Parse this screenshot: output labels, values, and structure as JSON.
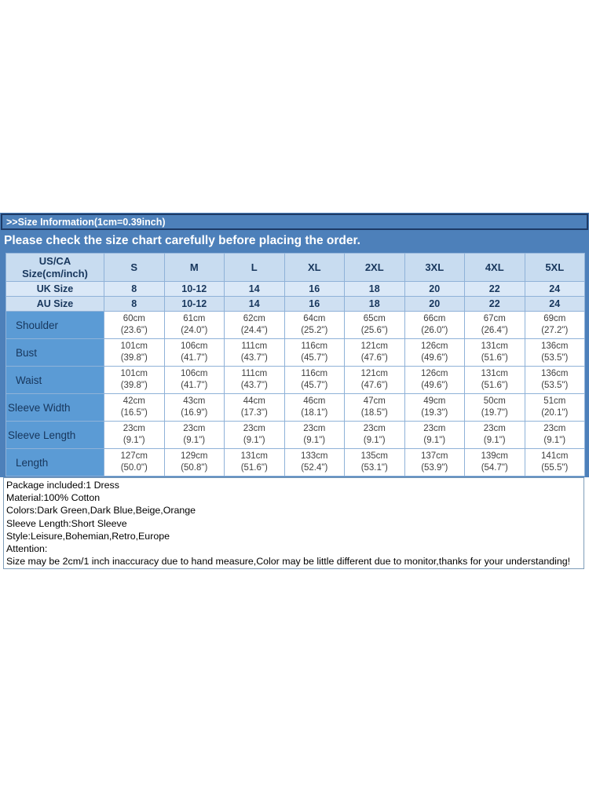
{
  "header": {
    "size_info": ">>Size Information(1cm=0.39inch)",
    "note": "Please check the size chart carefully before placing the order."
  },
  "table": {
    "corner": [
      "US/CA",
      "Size(cm/inch)"
    ],
    "size_columns": [
      "S",
      "M",
      "L",
      "XL",
      "2XL",
      "3XL",
      "4XL",
      "5XL"
    ],
    "conversion_rows": [
      {
        "label": "UK Size",
        "values": [
          "8",
          "10-12",
          "14",
          "16",
          "18",
          "20",
          "22",
          "24"
        ]
      },
      {
        "label": "AU Size",
        "values": [
          "8",
          "10-12",
          "14",
          "16",
          "18",
          "20",
          "22",
          "24"
        ]
      }
    ],
    "measurement_rows": [
      {
        "label": "Shoulder",
        "cm": [
          "60cm",
          "61cm",
          "62cm",
          "64cm",
          "65cm",
          "66cm",
          "67cm",
          "69cm"
        ],
        "inch": [
          "(23.6\")",
          "(24.0\")",
          "(24.4\")",
          "(25.2\")",
          "(25.6\")",
          "(26.0\")",
          "(26.4\")",
          "(27.2\")"
        ]
      },
      {
        "label": "Bust",
        "cm": [
          "101cm",
          "106cm",
          "111cm",
          "116cm",
          "121cm",
          "126cm",
          "131cm",
          "136cm"
        ],
        "inch": [
          "(39.8\")",
          "(41.7\")",
          "(43.7\")",
          "(45.7\")",
          "(47.6\")",
          "(49.6\")",
          "(51.6\")",
          "(53.5\")"
        ]
      },
      {
        "label": "Waist",
        "cm": [
          "101cm",
          "106cm",
          "111cm",
          "116cm",
          "121cm",
          "126cm",
          "131cm",
          "136cm"
        ],
        "inch": [
          "(39.8\")",
          "(41.7\")",
          "(43.7\")",
          "(45.7\")",
          "(47.6\")",
          "(49.6\")",
          "(51.6\")",
          "(53.5\")"
        ]
      },
      {
        "label": "Sleeve Width",
        "cm": [
          "42cm",
          "43cm",
          "44cm",
          "46cm",
          "47cm",
          "49cm",
          "50cm",
          "51cm"
        ],
        "inch": [
          "(16.5\")",
          "(16.9\")",
          "(17.3\")",
          "(18.1\")",
          "(18.5\")",
          "(19.3\")",
          "(19.7\")",
          "(20.1\")"
        ]
      },
      {
        "label": "Sleeve Length",
        "cm": [
          "23cm",
          "23cm",
          "23cm",
          "23cm",
          "23cm",
          "23cm",
          "23cm",
          "23cm"
        ],
        "inch": [
          "(9.1\")",
          "(9.1\")",
          "(9.1\")",
          "(9.1\")",
          "(9.1\")",
          "(9.1\")",
          "(9.1\")",
          "(9.1\")"
        ]
      },
      {
        "label": "Length",
        "cm": [
          "127cm",
          "129cm",
          "131cm",
          "133cm",
          "135cm",
          "137cm",
          "139cm",
          "141cm"
        ],
        "inch": [
          "(50.0\")",
          "(50.8\")",
          "(51.6\")",
          "(52.4\")",
          "(53.1\")",
          "(53.9\")",
          "(54.7\")",
          "(55.5\")"
        ]
      }
    ]
  },
  "details": {
    "lines": [
      "Package included:1 Dress",
      "Material:100% Cotton",
      "Colors:Dark Green,Dark Blue,Beige,Orange",
      "Sleeve Length:Short Sleeve",
      "Style:Leisure,Bohemian,Retro,Europe",
      "Attention:",
      "Size may be 2cm/1 inch inaccuracy due to hand measure,Color may be little different due to monitor,thanks for your understanding!"
    ]
  },
  "colors": {
    "panel_blue": "#4d80ba",
    "label_column_blue": "#5b9bd5",
    "corner_row_bg": "#c8dcf0",
    "uk_row_bg": "#dae8f7",
    "au_row_bg": "#cfe0f2",
    "grid_border": "#8fb2d8",
    "info_bar_border": "#1d3a66",
    "header_text": "#17365c",
    "cell_text": "#3f3f3f",
    "note_text": "#ffffff"
  }
}
